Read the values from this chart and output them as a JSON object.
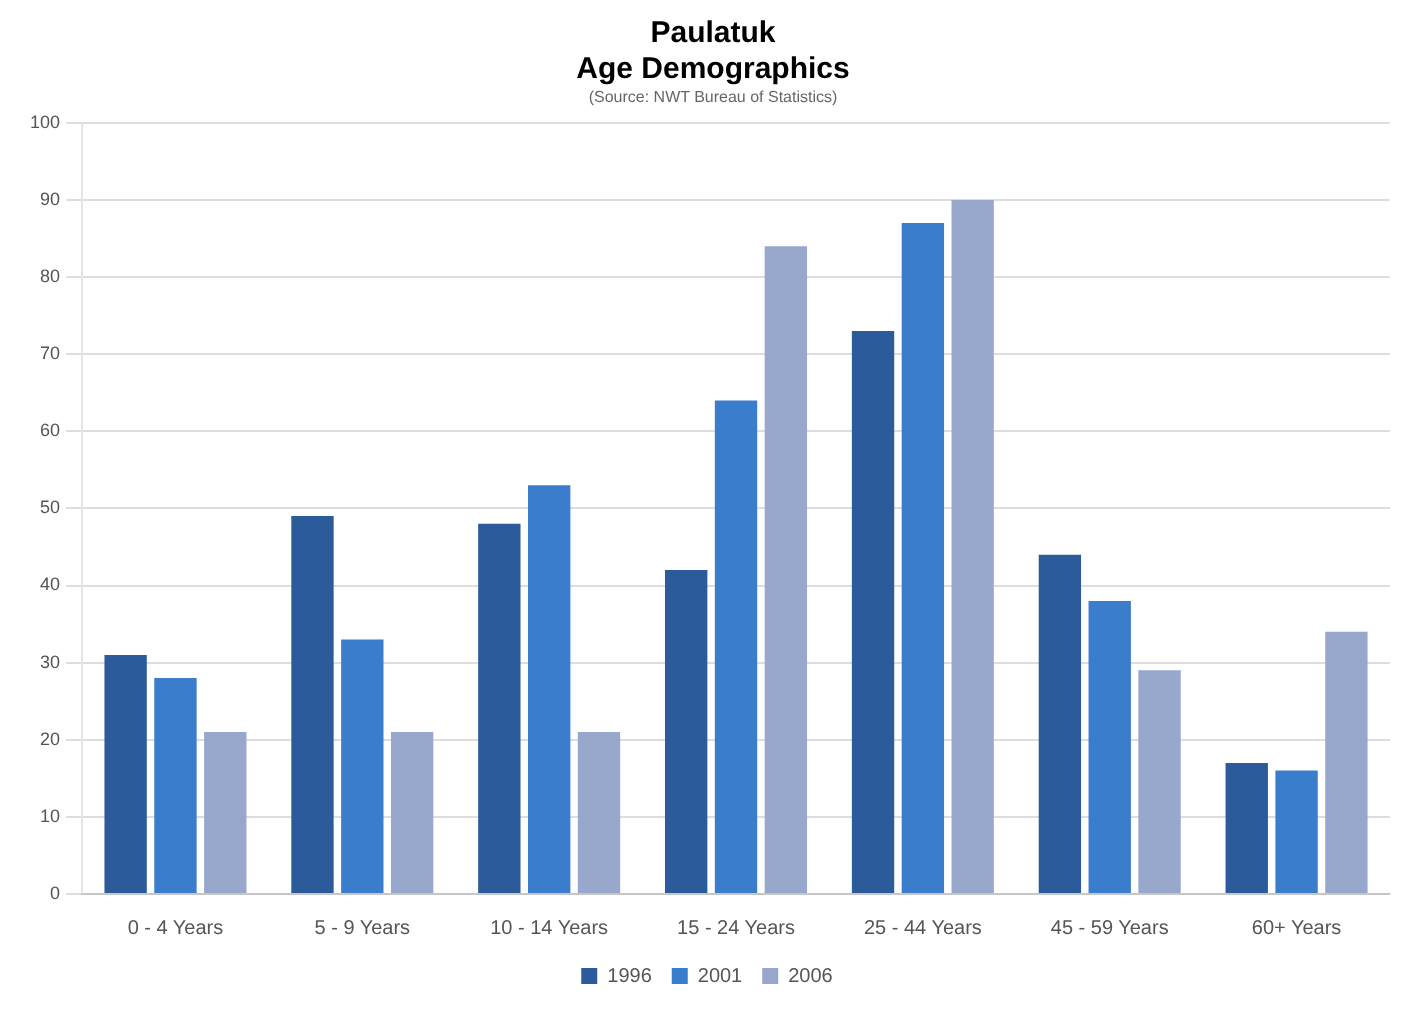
{
  "chart_data": {
    "type": "bar",
    "title": "Paulatuk",
    "subtitle": "Age Demographics",
    "annotations": [
      "(Source: NWT Bureau of Statistics)"
    ],
    "categories": [
      "0 - 4 Years",
      "5 - 9 Years",
      "10 - 14 Years",
      "15 - 24 Years",
      "25 - 44 Years",
      "45 - 59 Years",
      "60+ Years"
    ],
    "series": [
      {
        "name": "1996",
        "color": "#2b5b9b",
        "values": [
          31,
          49,
          48,
          42,
          73,
          44,
          17
        ]
      },
      {
        "name": "2001",
        "color": "#3a7dcc",
        "values": [
          28,
          33,
          53,
          64,
          87,
          38,
          16
        ]
      },
      {
        "name": "2006",
        "color": "#98a8cc",
        "values": [
          21,
          21,
          21,
          84,
          90,
          29,
          34
        ]
      }
    ],
    "ylim": [
      0,
      100
    ],
    "yticks": [
      0,
      10,
      20,
      30,
      40,
      50,
      60,
      70,
      80,
      90,
      100
    ],
    "grid": "y",
    "legend": "bottom"
  }
}
